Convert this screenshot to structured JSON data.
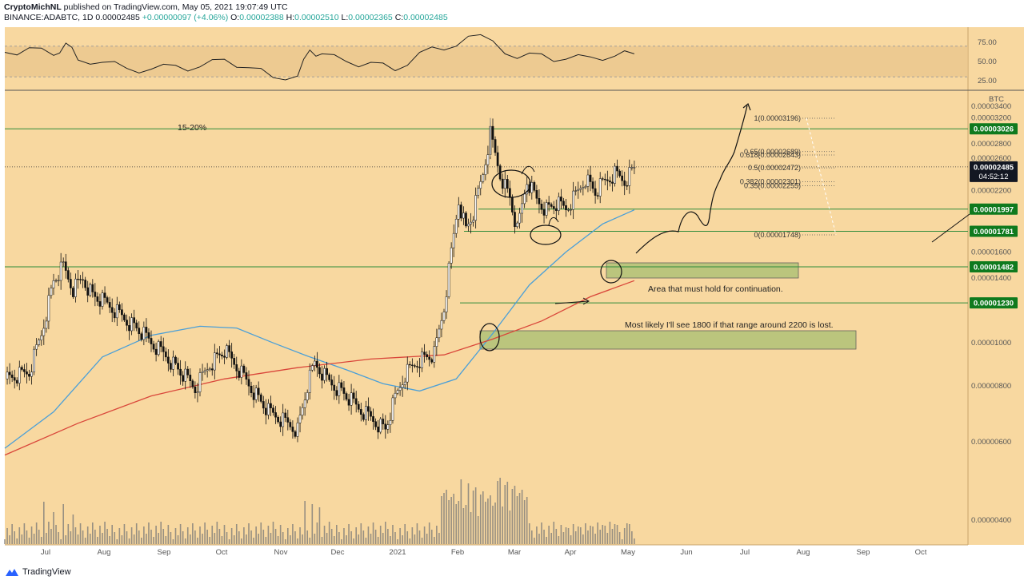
{
  "header": {
    "publisher_line": "CryptoMichNL published on TradingView.com, May 05, 2021 19:07:49 UTC",
    "publisher": "CryptoMichNL",
    "symbol": "BINANCE:ADABTC, 1D",
    "price": "0.00002485",
    "change": "+0.00000097 (+4.06%)",
    "o_label": "O:",
    "o_value": "0.00002388",
    "h_label": "H:",
    "h_value": "0.00002510",
    "l_label": "L:",
    "l_value": "0.00002365",
    "c_label": "C:",
    "c_value": "0.00002485"
  },
  "footer": {
    "brand": "TradingView"
  },
  "colors": {
    "background": "#f8d8a0",
    "candle": "#111111",
    "ma_blue": "#4a9fd8",
    "ma_red": "#d9463a",
    "level_line": "#2e8b3a",
    "zone_fill": "#b5c47a",
    "tag_green": "#0f7a1e",
    "tag_dark": "#131722"
  },
  "chart_data": {
    "type": "candlestick",
    "symbol": "BINANCE:ADABTC",
    "timeframe": "1D",
    "unit": "BTC",
    "y_scale": "log",
    "ylim": [
      3.1e-06,
      3.7e-06
    ],
    "x_labels": [
      "Jul",
      "Aug",
      "Sep",
      "Oct",
      "Nov",
      "Dec",
      "2021",
      "Feb",
      "Mar",
      "Apr",
      "May",
      "Jun",
      "Jul",
      "Aug",
      "Sep",
      "Oct"
    ],
    "y_ticks": [
      "0.00003400",
      "0.00003200",
      "0.00002800",
      "0.00002600",
      "0.00002200",
      "0.00001600",
      "0.00001400",
      "0.00001000",
      "0.00000800",
      "0.00000600",
      "0.00000400"
    ],
    "y_tick_values": [
      3.4e-05,
      3.2e-05,
      2.8e-05,
      2.6e-05,
      2.2e-05,
      1.6e-05,
      1.4e-05,
      1e-05,
      8e-06,
      6e-06,
      4e-06
    ],
    "price_path": [
      [
        0,
        8.3e-06
      ],
      [
        5,
        8.4e-06
      ],
      [
        10,
        8.6e-06
      ],
      [
        15,
        1.05e-05
      ],
      [
        20,
        1.38e-05
      ],
      [
        24,
        1.48e-05
      ],
      [
        28,
        1.32e-05
      ],
      [
        32,
        1.4e-05
      ],
      [
        36,
        1.28e-05
      ],
      [
        42,
        1.22e-05
      ],
      [
        48,
        1.15e-05
      ],
      [
        54,
        1.08e-05
      ],
      [
        60,
        1e-05
      ],
      [
        66,
        9.4e-06
      ],
      [
        72,
        8.6e-06
      ],
      [
        78,
        7.9e-06
      ],
      [
        84,
        9e-06
      ],
      [
        90,
        9.6e-06
      ],
      [
        96,
        8.7e-06
      ],
      [
        102,
        7.8e-06
      ],
      [
        108,
        7e-06
      ],
      [
        114,
        6.7e-06
      ],
      [
        120,
        6.4e-06
      ],
      [
        124,
        8e-06
      ],
      [
        127,
        9e-06
      ],
      [
        132,
        8.3e-06
      ],
      [
        138,
        7.8e-06
      ],
      [
        144,
        7.2e-06
      ],
      [
        150,
        6.8e-06
      ],
      [
        156,
        6.4e-06
      ],
      [
        160,
        7.5e-06
      ],
      [
        164,
        8.5e-06
      ],
      [
        170,
        9.2e-06
      ],
      [
        176,
        9.4e-06
      ],
      [
        180,
        1.2e-05
      ],
      [
        183,
        1.6e-05
      ],
      [
        186,
        2.1e-05
      ],
      [
        189,
        1.8e-05
      ],
      [
        192,
        1.95e-05
      ],
      [
        196,
        2.4e-05
      ],
      [
        199,
        2.95e-05
      ],
      [
        203,
        2.4e-05
      ],
      [
        207,
        2.12e-05
      ],
      [
        210,
        1.78e-05
      ],
      [
        214,
        2.32e-05
      ],
      [
        218,
        2.1e-05
      ],
      [
        222,
        2e-05
      ],
      [
        226,
        2.05e-05
      ],
      [
        230,
        2e-05
      ],
      [
        234,
        2.15e-05
      ],
      [
        238,
        2.35e-05
      ],
      [
        242,
        2.18e-05
      ],
      [
        246,
        2.3e-05
      ],
      [
        250,
        2.4e-05
      ],
      [
        254,
        2.32e-05
      ],
      [
        258,
        2.48e-05
      ]
    ],
    "ma_blue_path": [
      [
        0,
        5.8e-06
      ],
      [
        20,
        7e-06
      ],
      [
        40,
        9.3e-06
      ],
      [
        60,
        1.04e-05
      ],
      [
        80,
        1.09e-05
      ],
      [
        95,
        1.08e-05
      ],
      [
        110,
        1e-05
      ],
      [
        125,
        9.3e-06
      ],
      [
        140,
        8.7e-06
      ],
      [
        155,
        8.1e-06
      ],
      [
        170,
        7.8e-06
      ],
      [
        185,
        8.3e-06
      ],
      [
        200,
        1.05e-05
      ],
      [
        215,
        1.35e-05
      ],
      [
        230,
        1.6e-05
      ],
      [
        245,
        1.85e-05
      ],
      [
        258,
        1.99e-05
      ]
    ],
    "ma_red_path": [
      [
        0,
        5.6e-06
      ],
      [
        30,
        6.6e-06
      ],
      [
        60,
        7.6e-06
      ],
      [
        90,
        8.3e-06
      ],
      [
        120,
        8.8e-06
      ],
      [
        150,
        9.2e-06
      ],
      [
        180,
        9.4e-06
      ],
      [
        200,
        1.02e-05
      ],
      [
        220,
        1.12e-05
      ],
      [
        240,
        1.27e-05
      ],
      [
        258,
        1.38e-05
      ]
    ],
    "levels": [
      {
        "label": "0.00003026",
        "price": 3.026e-05
      },
      {
        "label": "0.00001997",
        "price": 1.997e-05
      },
      {
        "label": "0.00001781",
        "price": 1.781e-05
      },
      {
        "label": "0.00001482",
        "price": 1.482e-05
      },
      {
        "label": "0.00001230",
        "price": 1.23e-05
      }
    ],
    "last_price": {
      "label": "0.00002485",
      "countdown": "04:52:12",
      "price": 2.485e-05
    },
    "axis_unit": "BTC",
    "fib_levels": [
      {
        "label": "1(0.00003196)",
        "price": 3.196e-05
      },
      {
        "label": "0.65(0.00002689)",
        "price": 2.689e-05
      },
      {
        "label": "0.618(0.00002643)",
        "price": 2.643e-05
      },
      {
        "label": "0.5(0.00002472)",
        "price": 2.472e-05
      },
      {
        "label": "0.382(0.00002301)",
        "price": 2.301e-05
      },
      {
        "label": "0.35(0.00002255)",
        "price": 2.255e-05
      },
      {
        "label": "0(0.00001748)",
        "price": 1.748e-05
      }
    ],
    "annotations": [
      "15-20%",
      "Area that must hold for continuation.",
      "Most likely I'll see 1800 if that range around 2200 is lost."
    ],
    "rsi": {
      "ticks": [
        "75.00",
        "50.00",
        "25.00"
      ],
      "tick_values": [
        75,
        50,
        25
      ],
      "band": [
        30,
        70
      ],
      "path": [
        [
          0,
          62
        ],
        [
          10,
          65
        ],
        [
          20,
          60
        ],
        [
          25,
          72
        ],
        [
          30,
          55
        ],
        [
          40,
          48
        ],
        [
          50,
          42
        ],
        [
          60,
          38
        ],
        [
          70,
          45
        ],
        [
          80,
          40
        ],
        [
          90,
          55
        ],
        [
          100,
          40
        ],
        [
          110,
          32
        ],
        [
          120,
          30
        ],
        [
          125,
          66
        ],
        [
          130,
          58
        ],
        [
          140,
          50
        ],
        [
          150,
          46
        ],
        [
          160,
          40
        ],
        [
          170,
          60
        ],
        [
          180,
          68
        ],
        [
          190,
          82
        ],
        [
          200,
          78
        ],
        [
          210,
          52
        ],
        [
          220,
          60
        ],
        [
          230,
          50
        ],
        [
          240,
          58
        ],
        [
          250,
          55
        ],
        [
          258,
          63
        ]
      ]
    },
    "volume_scale_note": "relative"
  }
}
